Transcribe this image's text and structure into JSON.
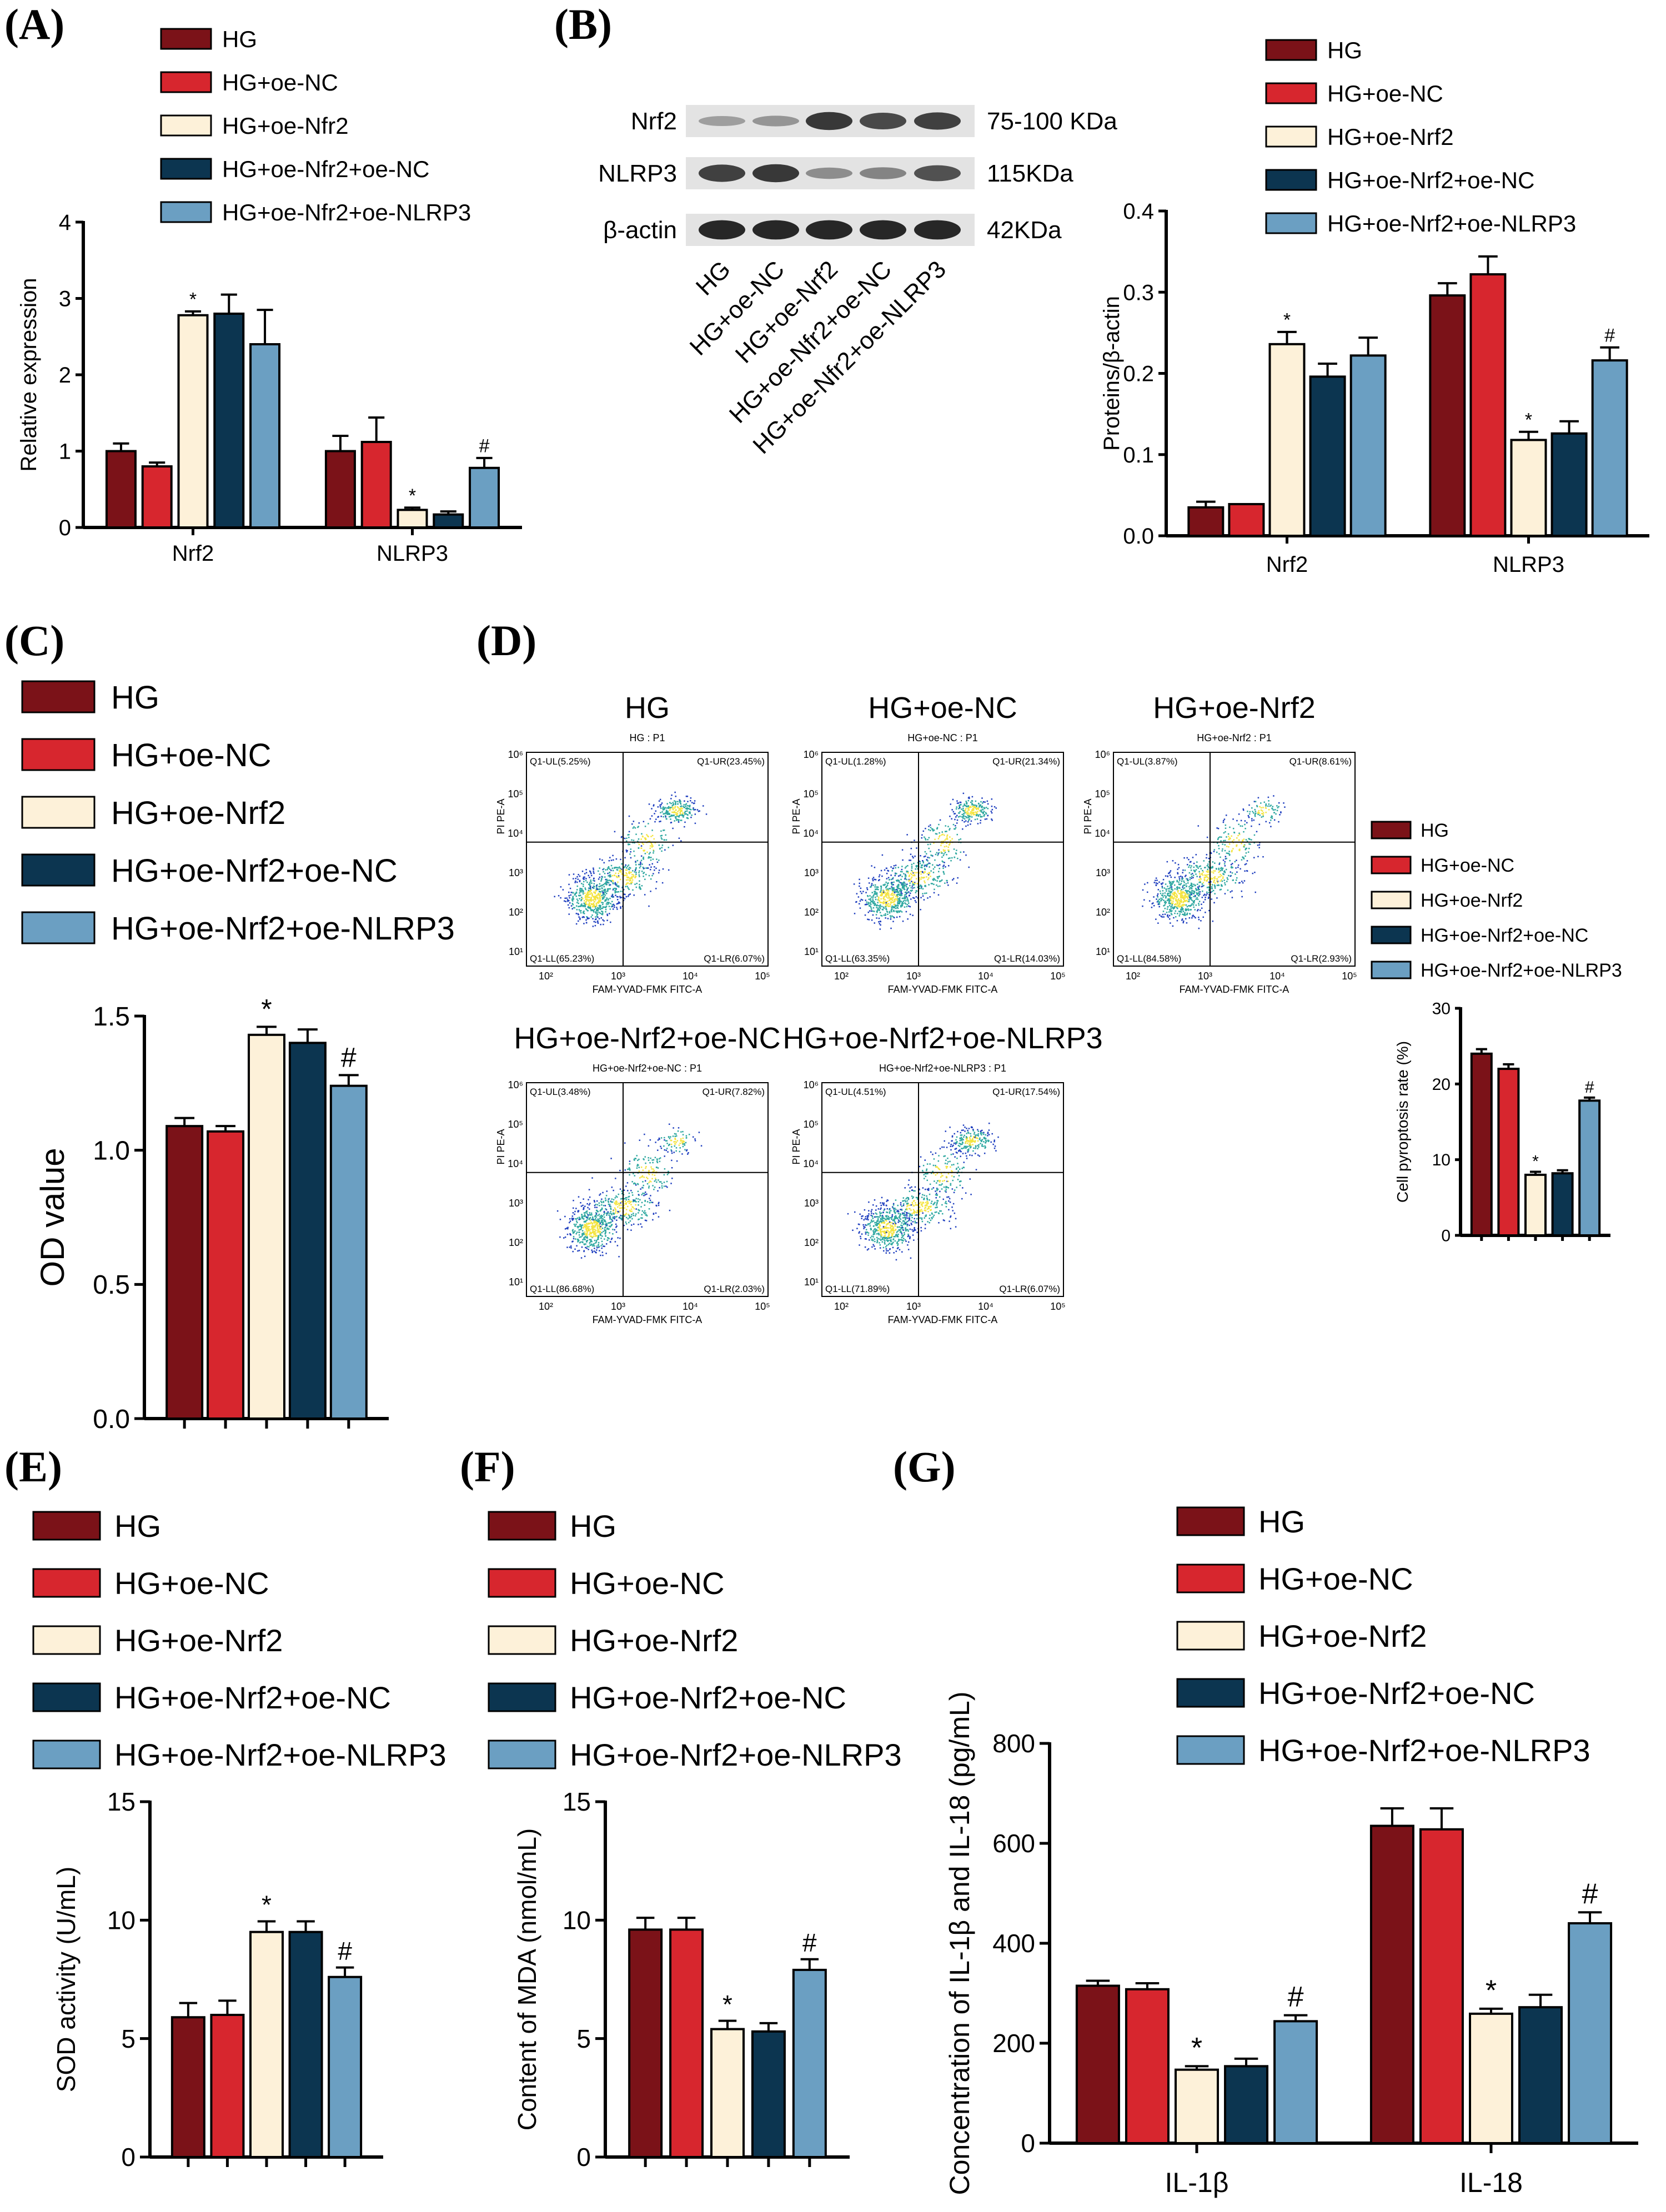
{
  "colors": {
    "HG": "#7b1218",
    "oeNC": "#d7262e",
    "oeNrf2": "#fdf1d9",
    "oeNrf2oeNC": "#0c3550",
    "oeNrf2oeNLRP3": "#6b9fc2",
    "flow_low": "#1f3fbf",
    "flow_mid": "#2fa8a0",
    "flow_high": "#f4e441",
    "wb_band": "#2a2a2a"
  },
  "panels": {
    "A": {
      "label": "(A)",
      "legend": [
        "HG",
        "HG+oe-NC",
        "HG+oe-Nfr2",
        "HG+oe-Nfr2+oe-NC",
        "HG+oe-Nfr2+oe-NLRP3"
      ]
    },
    "B": {
      "label": "(B)",
      "legend": [
        "HG",
        "HG+oe-NC",
        "HG+oe-Nrf2",
        "HG+oe-Nrf2+oe-NC",
        "HG+oe-Nrf2+oe-NLRP3"
      ],
      "wb": {
        "rows": [
          {
            "name": "Nrf2",
            "size": "75-100 KDa",
            "intensity": [
              0.25,
              0.3,
              0.85,
              0.75,
              0.8
            ]
          },
          {
            "name": "NLRP3",
            "size": "115KDa",
            "intensity": [
              0.8,
              0.85,
              0.35,
              0.4,
              0.7
            ]
          },
          {
            "name": "β-actin",
            "size": "42KDa",
            "intensity": [
              0.95,
              0.95,
              0.95,
              0.95,
              0.95
            ]
          }
        ],
        "lanes": [
          "HG",
          "HG+oe-NC",
          "HG+oe-Nrf2",
          "HG+oe-Nfr2+oe-NC",
          "HG+oe-Nfr2+oe-NLRP3"
        ]
      }
    },
    "C": {
      "label": "(C)",
      "legend": [
        "HG",
        "HG+oe-NC",
        "HG+oe-Nrf2",
        "HG+oe-Nrf2+oe-NC",
        "HG+oe-Nrf2+oe-NLRP3"
      ]
    },
    "D": {
      "label": "(D)",
      "legend": [
        "HG",
        "HG+oe-NC",
        "HG+oe-Nrf2",
        "HG+oe-Nrf2+oe-NC",
        "HG+oe-Nrf2+oe-NLRP3"
      ],
      "flow": [
        {
          "title": "HG",
          "sub": "HG : P1",
          "UL": "Q1-UL(5.25%)",
          "UR": "Q1-UR(23.45%)",
          "LL": "Q1-LL(65.23%)",
          "LR": "Q1-LR(6.07%)"
        },
        {
          "title": "HG+oe-NC",
          "sub": "HG+oe-NC : P1",
          "UL": "Q1-UL(1.28%)",
          "UR": "Q1-UR(21.34%)",
          "LL": "Q1-LL(63.35%)",
          "LR": "Q1-LR(14.03%)"
        },
        {
          "title": "HG+oe-Nrf2",
          "sub": "HG+oe-Nrf2 : P1",
          "UL": "Q1-UL(3.87%)",
          "UR": "Q1-UR(8.61%)",
          "LL": "Q1-LL(84.58%)",
          "LR": "Q1-LR(2.93%)"
        },
        {
          "title": "HG+oe-Nrf2+oe-NC",
          "sub": "HG+oe-Nrf2+oe-NC : P1",
          "UL": "Q1-UL(3.48%)",
          "UR": "Q1-UR(7.82%)",
          "LL": "Q1-LL(86.68%)",
          "LR": "Q1-LR(2.03%)"
        },
        {
          "title": "HG+oe-Nrf2+oe-NLRP3",
          "sub": "HG+oe-Nrf2+oe-NLRP3 : P1",
          "UL": "Q1-UL(4.51%)",
          "UR": "Q1-UR(17.54%)",
          "LL": "Q1-LL(71.89%)",
          "LR": "Q1-LR(6.07%)"
        }
      ],
      "flow_xlabel": "FAM-YVAD-FMK FITC-A",
      "flow_ylabel": "PI PE-A",
      "flow_ticks": [
        "10²",
        "10³",
        "10⁴",
        "10⁵"
      ],
      "flow_yticks": [
        "10¹",
        "10²",
        "10³",
        "10⁴",
        "10⁵",
        "10⁶"
      ]
    },
    "E": {
      "label": "(E)",
      "legend": [
        "HG",
        "HG+oe-NC",
        "HG+oe-Nrf2",
        "HG+oe-Nrf2+oe-NC",
        "HG+oe-Nrf2+oe-NLRP3"
      ]
    },
    "F": {
      "label": "(F)",
      "legend": [
        "HG",
        "HG+oe-NC",
        "HG+oe-Nrf2",
        "HG+oe-Nrf2+oe-NC",
        "HG+oe-Nrf2+oe-NLRP3"
      ]
    },
    "G": {
      "label": "(G)",
      "legend": [
        "HG",
        "HG+oe-NC",
        "HG+oe-Nrf2",
        "HG+oe-Nrf2+oe-NC",
        "HG+oe-Nrf2+oe-NLRP3"
      ]
    }
  },
  "chart_data": [
    {
      "id": "A",
      "type": "bar",
      "categories": [
        "Nrf2",
        "NLRP3"
      ],
      "series": [
        {
          "name": "HG",
          "values": [
            1.0,
            1.0
          ],
          "errors": [
            0.1,
            0.2
          ],
          "sig": [
            "",
            ""
          ]
        },
        {
          "name": "HG+oe-NC",
          "values": [
            0.8,
            1.12
          ],
          "errors": [
            0.05,
            0.32
          ],
          "sig": [
            "",
            ""
          ]
        },
        {
          "name": "HG+oe-Nfr2",
          "values": [
            2.78,
            0.23
          ],
          "errors": [
            0.05,
            0.03
          ],
          "sig": [
            "*",
            "*"
          ]
        },
        {
          "name": "HG+oe-Nfr2+oe-NC",
          "values": [
            2.8,
            0.17
          ],
          "errors": [
            0.25,
            0.04
          ],
          "sig": [
            "",
            ""
          ]
        },
        {
          "name": "HG+oe-Nfr2+oe-NLRP3",
          "values": [
            2.4,
            0.78
          ],
          "errors": [
            0.45,
            0.13
          ],
          "sig": [
            "",
            "#"
          ]
        }
      ],
      "ylabel": "Relative expression",
      "xlabel": "",
      "title": "",
      "ylim": [
        0,
        4
      ],
      "yticks": [
        0,
        1,
        2,
        3,
        4
      ]
    },
    {
      "id": "B",
      "type": "bar",
      "categories": [
        "Nrf2",
        "NLRP3"
      ],
      "series": [
        {
          "name": "HG",
          "values": [
            0.035,
            0.296
          ],
          "errors": [
            0.007,
            0.015
          ],
          "sig": [
            "",
            ""
          ]
        },
        {
          "name": "HG+oe-NC",
          "values": [
            0.039,
            0.322
          ],
          "errors": [
            0,
            0.022
          ],
          "sig": [
            "",
            ""
          ]
        },
        {
          "name": "HG+oe-Nrf2",
          "values": [
            0.236,
            0.118
          ],
          "errors": [
            0.015,
            0.01
          ],
          "sig": [
            "*",
            "*"
          ]
        },
        {
          "name": "HG+oe-Nrf2+oe-NC",
          "values": [
            0.196,
            0.126
          ],
          "errors": [
            0.016,
            0.015
          ],
          "sig": [
            "",
            ""
          ]
        },
        {
          "name": "HG+oe-Nrf2+oe-NLRP3",
          "values": [
            0.222,
            0.216
          ],
          "errors": [
            0.022,
            0.016
          ],
          "sig": [
            "",
            "#"
          ]
        }
      ],
      "ylabel": "Proteins/β-actin",
      "xlabel": "",
      "title": "",
      "ylim": [
        0,
        0.4
      ],
      "yticks": [
        0.0,
        0.1,
        0.2,
        0.3,
        0.4
      ]
    },
    {
      "id": "C",
      "type": "bar",
      "categories": [
        ""
      ],
      "series": [
        {
          "name": "HG",
          "values": [
            1.09
          ],
          "errors": [
            0.03
          ],
          "sig": [
            ""
          ]
        },
        {
          "name": "HG+oe-NC",
          "values": [
            1.07
          ],
          "errors": [
            0.02
          ],
          "sig": [
            ""
          ]
        },
        {
          "name": "HG+oe-Nrf2",
          "values": [
            1.43
          ],
          "errors": [
            0.03
          ],
          "sig": [
            "*"
          ]
        },
        {
          "name": "HG+oe-Nrf2+oe-NC",
          "values": [
            1.4
          ],
          "errors": [
            0.05
          ],
          "sig": [
            ""
          ]
        },
        {
          "name": "HG+oe-Nrf2+oe-NLRP3",
          "values": [
            1.24
          ],
          "errors": [
            0.04
          ],
          "sig": [
            "#"
          ]
        }
      ],
      "ylabel": "OD value",
      "xlabel": "",
      "title": "",
      "ylim": [
        0,
        1.5
      ],
      "yticks": [
        0.0,
        0.5,
        1.0,
        1.5
      ]
    },
    {
      "id": "D",
      "type": "bar",
      "categories": [
        ""
      ],
      "series": [
        {
          "name": "HG",
          "values": [
            24
          ],
          "errors": [
            0.6
          ],
          "sig": [
            ""
          ]
        },
        {
          "name": "HG+oe-NC",
          "values": [
            22
          ],
          "errors": [
            0.6
          ],
          "sig": [
            ""
          ]
        },
        {
          "name": "HG+oe-Nrf2",
          "values": [
            8
          ],
          "errors": [
            0.4
          ],
          "sig": [
            "*"
          ]
        },
        {
          "name": "HG+oe-Nrf2+oe-NC",
          "values": [
            8.2
          ],
          "errors": [
            0.4
          ],
          "sig": [
            ""
          ]
        },
        {
          "name": "HG+oe-Nrf2+oe-NLRP3",
          "values": [
            17.8
          ],
          "errors": [
            0.4
          ],
          "sig": [
            "#"
          ]
        }
      ],
      "ylabel": "Cell pyroptosis rate (%)",
      "xlabel": "",
      "title": "",
      "ylim": [
        0,
        30
      ],
      "yticks": [
        0,
        10,
        20,
        30
      ]
    },
    {
      "id": "E",
      "type": "bar",
      "categories": [
        ""
      ],
      "series": [
        {
          "name": "HG",
          "values": [
            5.9
          ],
          "errors": [
            0.6
          ],
          "sig": [
            ""
          ]
        },
        {
          "name": "HG+oe-NC",
          "values": [
            6.0
          ],
          "errors": [
            0.6
          ],
          "sig": [
            ""
          ]
        },
        {
          "name": "HG+oe-Nrf2",
          "values": [
            9.5
          ],
          "errors": [
            0.45
          ],
          "sig": [
            "*"
          ]
        },
        {
          "name": "HG+oe-Nrf2+oe-NC",
          "values": [
            9.5
          ],
          "errors": [
            0.45
          ],
          "sig": [
            ""
          ]
        },
        {
          "name": "HG+oe-Nrf2+oe-NLRP3",
          "values": [
            7.6
          ],
          "errors": [
            0.4
          ],
          "sig": [
            "#"
          ]
        }
      ],
      "ylabel": "SOD activity (U/mL)",
      "xlabel": "",
      "title": "",
      "ylim": [
        0,
        15
      ],
      "yticks": [
        0,
        5,
        10,
        15
      ]
    },
    {
      "id": "F",
      "type": "bar",
      "categories": [
        ""
      ],
      "series": [
        {
          "name": "HG",
          "values": [
            9.6
          ],
          "errors": [
            0.5
          ],
          "sig": [
            ""
          ]
        },
        {
          "name": "HG+oe-NC",
          "values": [
            9.6
          ],
          "errors": [
            0.5
          ],
          "sig": [
            ""
          ]
        },
        {
          "name": "HG+oe-Nrf2",
          "values": [
            5.4
          ],
          "errors": [
            0.35
          ],
          "sig": [
            "*"
          ]
        },
        {
          "name": "HG+oe-Nrf2+oe-NC",
          "values": [
            5.3
          ],
          "errors": [
            0.35
          ],
          "sig": [
            ""
          ]
        },
        {
          "name": "HG+oe-Nrf2+oe-NLRP3",
          "values": [
            7.9
          ],
          "errors": [
            0.45
          ],
          "sig": [
            "#"
          ]
        }
      ],
      "ylabel": "Content of MDA (nmol/mL)",
      "xlabel": "",
      "title": "",
      "ylim": [
        0,
        15
      ],
      "yticks": [
        0,
        5,
        10,
        15
      ]
    },
    {
      "id": "G",
      "type": "bar",
      "categories": [
        "IL-1β",
        "IL-18"
      ],
      "series": [
        {
          "name": "HG",
          "values": [
            315,
            635
          ],
          "errors": [
            10,
            35
          ],
          "sig": [
            "",
            ""
          ]
        },
        {
          "name": "HG+oe-NC",
          "values": [
            308,
            628
          ],
          "errors": [
            12,
            42
          ],
          "sig": [
            "",
            ""
          ]
        },
        {
          "name": "HG+oe-Nrf2",
          "values": [
            147,
            259
          ],
          "errors": [
            7,
            10
          ],
          "sig": [
            "*",
            "*"
          ]
        },
        {
          "name": "HG+oe-Nrf2+oe-NC",
          "values": [
            154,
            272
          ],
          "errors": [
            15,
            25
          ],
          "sig": [
            "",
            ""
          ]
        },
        {
          "name": "HG+oe-Nrf2+oe-NLRP3",
          "values": [
            244,
            440
          ],
          "errors": [
            12,
            22
          ],
          "sig": [
            "#",
            "#"
          ]
        }
      ],
      "ylabel": "Concentration of IL-1β and IL-18 (pg/mL)",
      "xlabel": "",
      "title": "",
      "ylim": [
        0,
        800
      ],
      "yticks": [
        0,
        200,
        400,
        600,
        800
      ]
    }
  ]
}
